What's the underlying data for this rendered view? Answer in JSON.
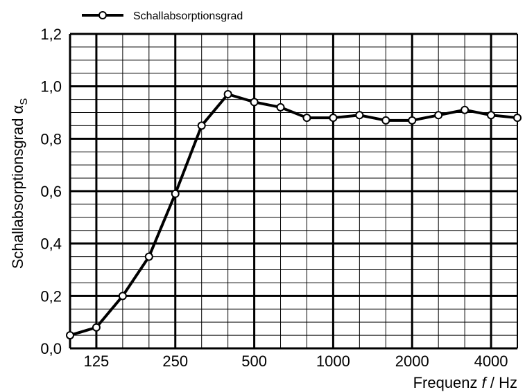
{
  "chart_data": {
    "type": "line",
    "x": [
      100,
      125,
      160,
      200,
      250,
      315,
      400,
      500,
      630,
      800,
      1000,
      1250,
      1600,
      2000,
      2500,
      3150,
      4000,
      5000
    ],
    "series": [
      {
        "name": "Schallabsorptionsgrad",
        "values": [
          0.05,
          0.08,
          0.2,
          0.35,
          0.59,
          0.85,
          0.97,
          0.94,
          0.92,
          0.88,
          0.88,
          0.89,
          0.87,
          0.87,
          0.89,
          0.91,
          0.89,
          0.88
        ],
        "color": "#000000"
      }
    ],
    "x_tick_labels": [
      "125",
      "250",
      "500",
      "1000",
      "2000",
      "4000"
    ],
    "x_tick_values": [
      125,
      250,
      500,
      1000,
      2000,
      4000
    ],
    "y_tick_labels": [
      "0,0",
      "0,2",
      "0,4",
      "0,6",
      "0,8",
      "1,0",
      "1,2"
    ],
    "ylim": [
      0,
      1.2
    ],
    "y_major_step": 0.2,
    "y_minor_step": 0.05,
    "x_scale": "log-third-octave",
    "grid": true,
    "legend_position": "top-left-outside",
    "ylabel_main": "Schallabsorptionsgrad α",
    "ylabel_sub": "S",
    "xlabel_prefix": "Frequenz ",
    "xlabel_var": "f",
    "xlabel_suffix": " / Hz",
    "x_index": [
      0,
      1,
      2,
      3,
      4,
      5,
      6,
      7,
      8,
      9,
      10,
      11,
      12,
      13,
      14,
      15,
      16,
      17
    ]
  }
}
